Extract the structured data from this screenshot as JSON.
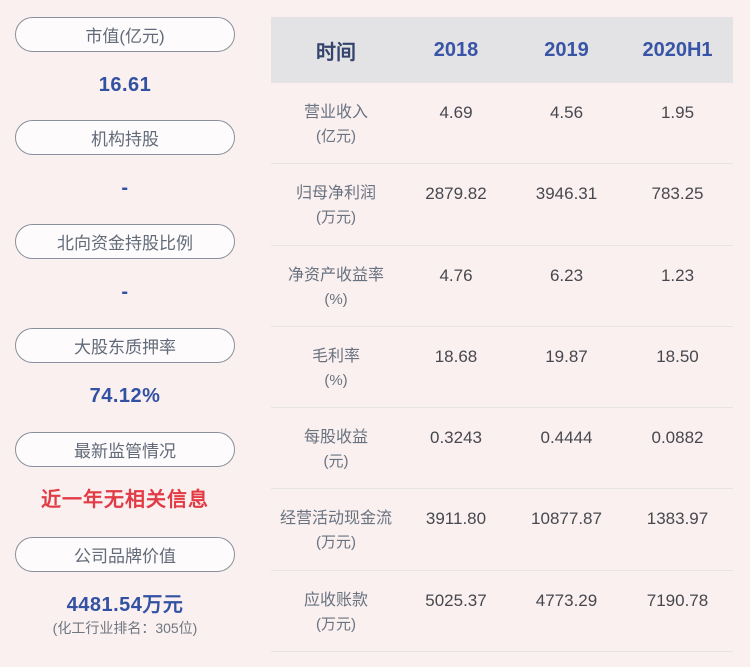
{
  "colors": {
    "page_background": "#f9f0ef",
    "table_header_background": "#e3e2e4",
    "pill_border": "#8a909b",
    "pill_text": "#626b7a",
    "accent_blue": "#3351a3",
    "year_blue": "#3854a6",
    "time_header_navy": "#33436b",
    "alert_red": "#e23b45",
    "value_gray": "#47484f",
    "label_gray": "#6a7280"
  },
  "sidebar": {
    "items": [
      {
        "label": "市值(亿元)",
        "value": "16.61"
      },
      {
        "label": "机构持股",
        "value": "-"
      },
      {
        "label": "北向资金持股比例",
        "value": "-"
      },
      {
        "label": "大股东质押率",
        "value": "74.12%"
      },
      {
        "label": "最新监管情况",
        "value": "近一年无相关信息"
      },
      {
        "label": "公司品牌价值",
        "value": "4481.54万元",
        "subvalue": "(化工行业排名：305位)"
      }
    ]
  },
  "table": {
    "header": {
      "time_label": "时间",
      "columns": [
        "2018",
        "2019",
        "2020H1"
      ]
    },
    "rows": [
      {
        "label": "营业收入",
        "unit": "(亿元)",
        "values": [
          "4.69",
          "4.56",
          "1.95"
        ]
      },
      {
        "label": "归母净利润",
        "unit": "(万元)",
        "values": [
          "2879.82",
          "3946.31",
          "783.25"
        ]
      },
      {
        "label": "净资产收益率",
        "unit": "(%)",
        "values": [
          "4.76",
          "6.23",
          "1.23"
        ]
      },
      {
        "label": "毛利率",
        "unit": "(%)",
        "values": [
          "18.68",
          "19.87",
          "18.50"
        ]
      },
      {
        "label": "每股收益",
        "unit": "(元)",
        "values": [
          "0.3243",
          "0.4444",
          "0.0882"
        ]
      },
      {
        "label": "经营活动现金流",
        "unit": "(万元)",
        "values": [
          "3911.80",
          "10877.87",
          "1383.97"
        ]
      },
      {
        "label": "应收账款",
        "unit": "(万元)",
        "values": [
          "5025.37",
          "4773.29",
          "7190.78"
        ]
      }
    ]
  }
}
